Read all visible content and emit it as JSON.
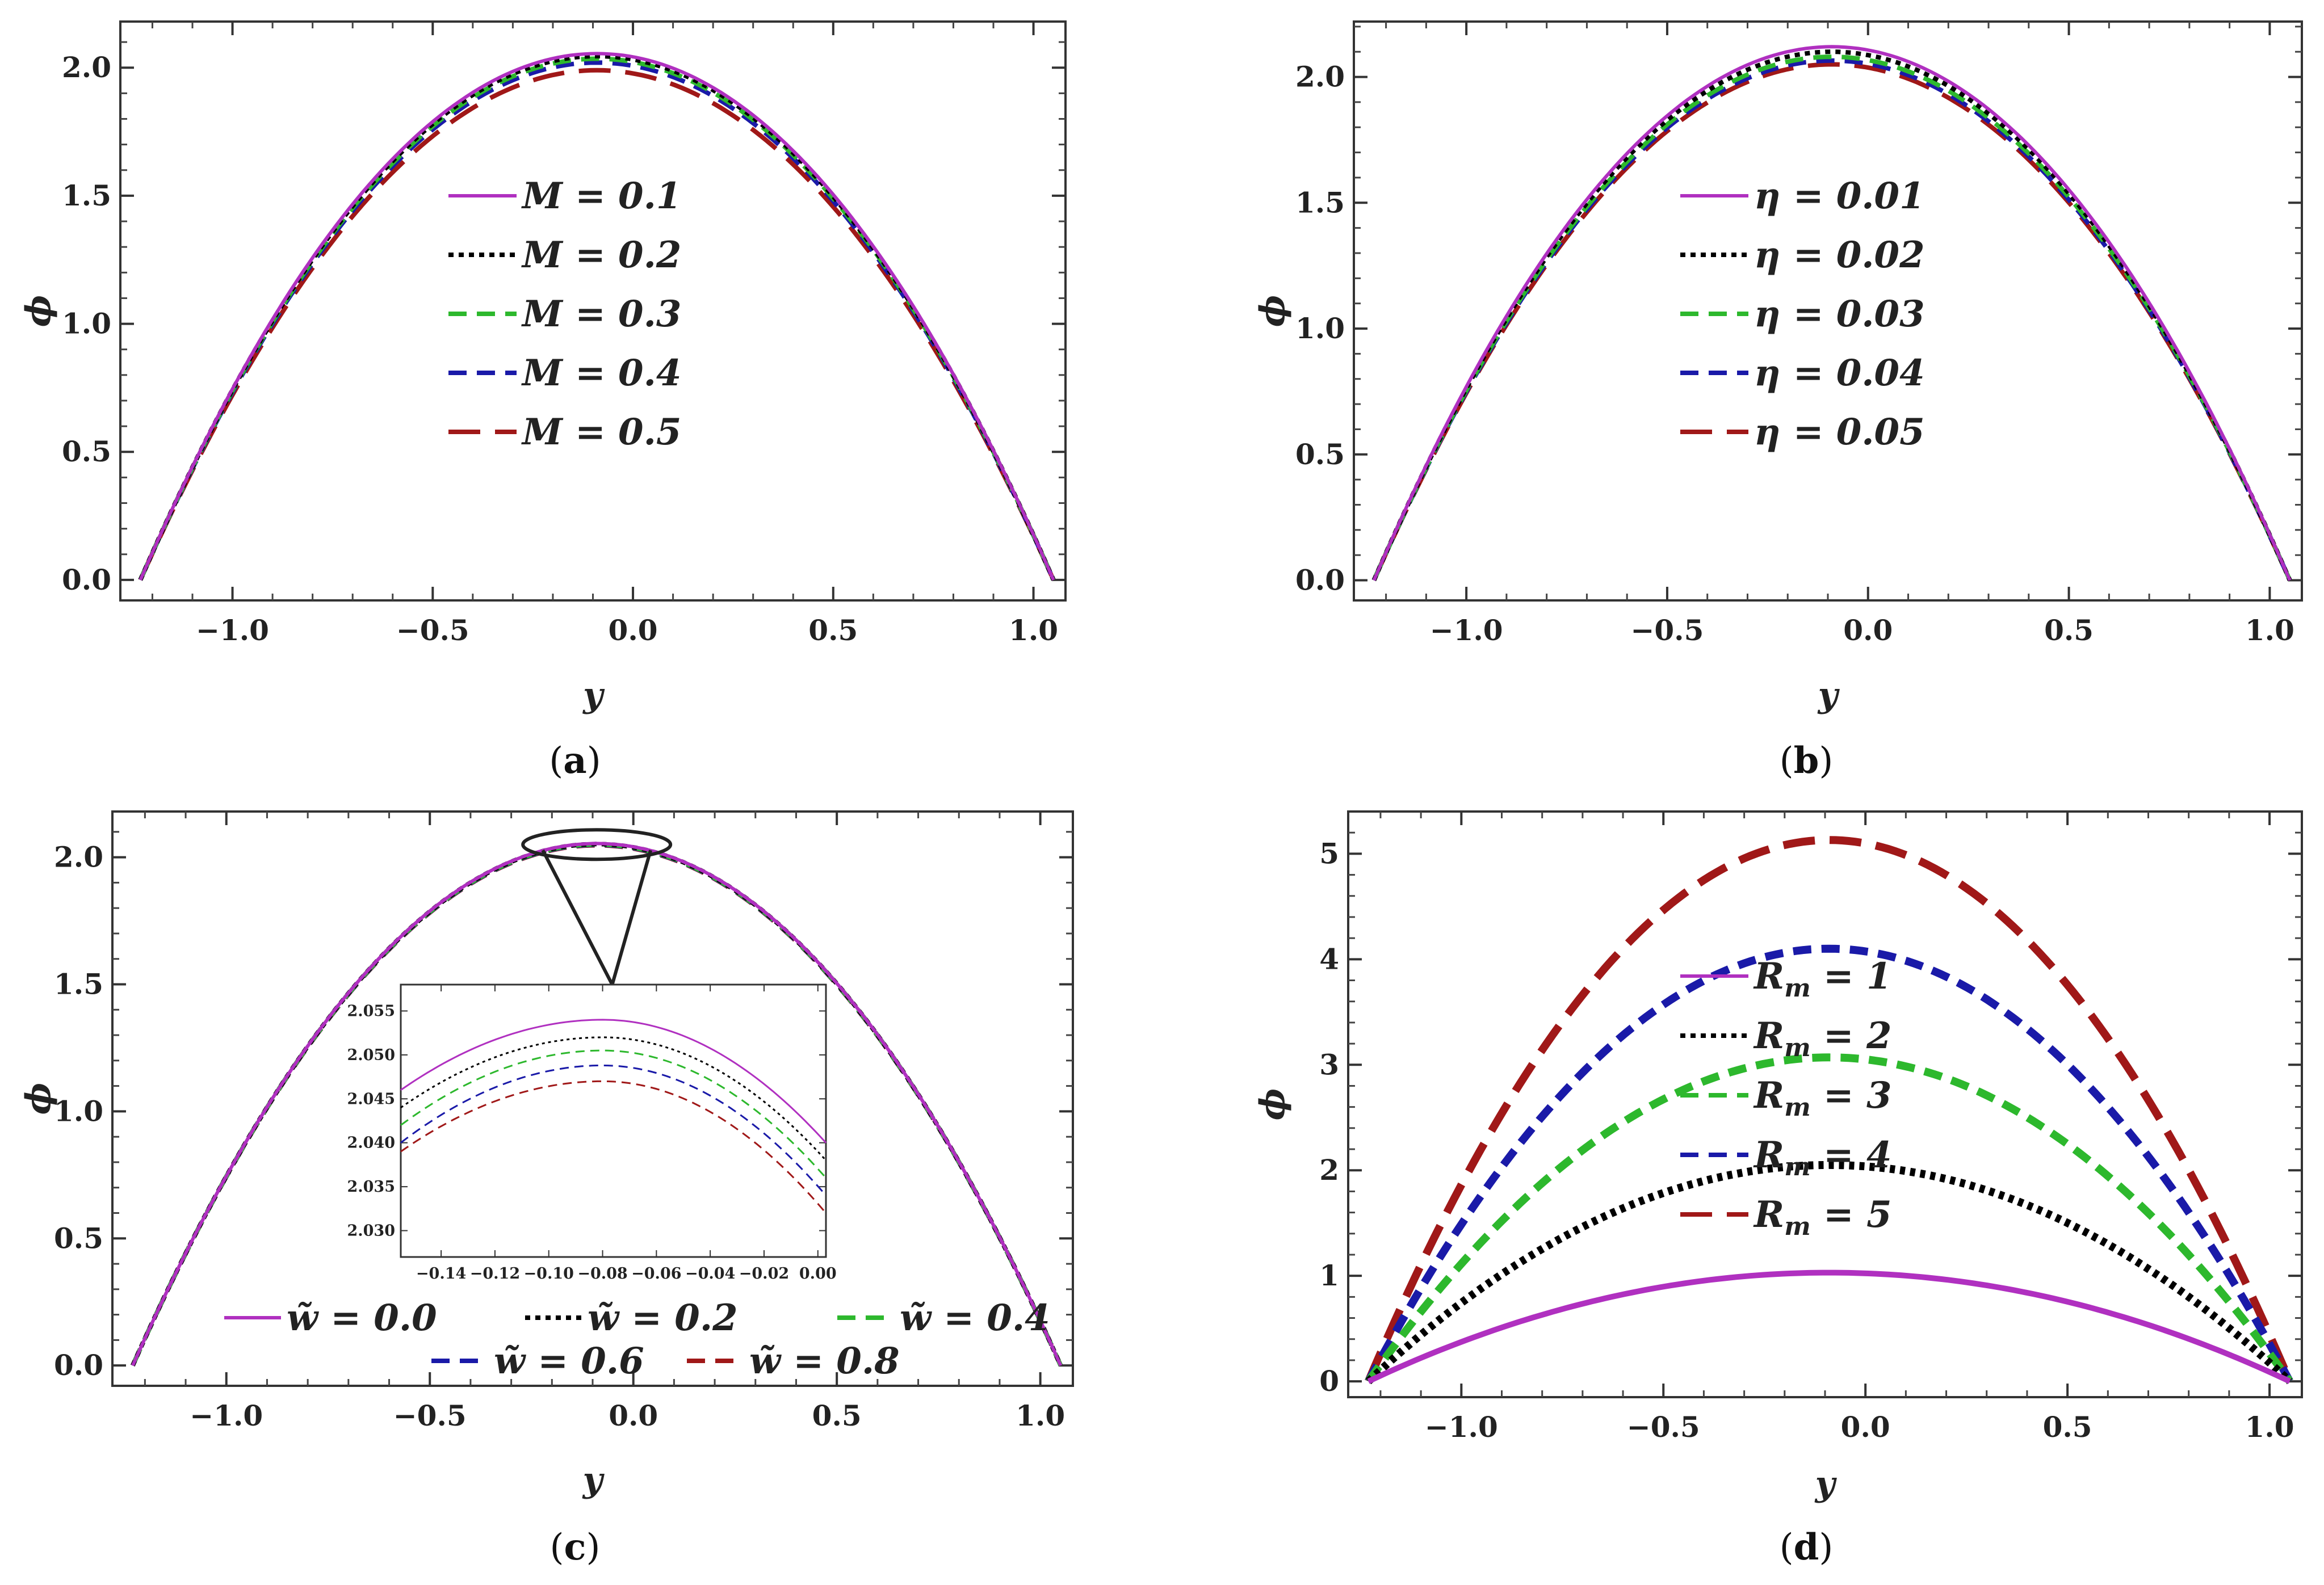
{
  "chart_data": [
    {
      "id": "a",
      "type": "line",
      "panel_label": "a",
      "xlabel": "y",
      "ylabel": "ϕ",
      "xlim": [
        -1.28,
        1.08
      ],
      "ylim": [
        -0.08,
        2.18
      ],
      "xticks": [
        "−1.0",
        "−0.5",
        "0.0",
        "0.5",
        "1.0"
      ],
      "xtick_values": [
        -1.0,
        -0.5,
        0.0,
        0.5,
        1.0
      ],
      "yticks": [
        "0.0",
        "0.5",
        "1.0",
        "1.5",
        "2.0"
      ],
      "ytick_values": [
        0.0,
        0.5,
        1.0,
        1.5,
        2.0
      ],
      "curve_domain": [
        -1.23,
        1.05
      ],
      "legend_position": "center",
      "legend_param": "M",
      "series": [
        {
          "name": "M = 0.1",
          "param": "M",
          "value": "0.1",
          "peak": 2.055,
          "color": "#b030c0",
          "dash": "solid"
        },
        {
          "name": "M = 0.2",
          "param": "M",
          "value": "0.2",
          "peak": 2.045,
          "color": "#000000",
          "dash": "dotted"
        },
        {
          "name": "M = 0.3",
          "param": "M",
          "value": "0.3",
          "peak": 2.035,
          "color": "#2db82d",
          "dash": "dashed"
        },
        {
          "name": "M = 0.4",
          "param": "M",
          "value": "0.4",
          "peak": 2.02,
          "color": "#1a1aa8",
          "dash": "dashed"
        },
        {
          "name": "M = 0.5",
          "param": "M",
          "value": "0.5",
          "peak": 1.99,
          "color": "#a01818",
          "dash": "longdash"
        }
      ]
    },
    {
      "id": "b",
      "type": "line",
      "panel_label": "b",
      "xlabel": "y",
      "ylabel": "ϕ",
      "xlim": [
        -1.28,
        1.08
      ],
      "ylim": [
        -0.08,
        2.22
      ],
      "xticks": [
        "−1.0",
        "−0.5",
        "0.0",
        "0.5",
        "1.0"
      ],
      "xtick_values": [
        -1.0,
        -0.5,
        0.0,
        0.5,
        1.0
      ],
      "yticks": [
        "0.0",
        "0.5",
        "1.0",
        "1.5",
        "2.0"
      ],
      "ytick_values": [
        0.0,
        0.5,
        1.0,
        1.5,
        2.0
      ],
      "curve_domain": [
        -1.23,
        1.05
      ],
      "legend_position": "center",
      "legend_param": "η",
      "series": [
        {
          "name": "η = 0.01",
          "param": "η",
          "value": "0.01",
          "peak": 2.12,
          "color": "#b030c0",
          "dash": "solid"
        },
        {
          "name": "η = 0.02",
          "param": "η",
          "value": "0.02",
          "peak": 2.1,
          "color": "#000000",
          "dash": "dotted"
        },
        {
          "name": "η = 0.03",
          "param": "η",
          "value": "0.03",
          "peak": 2.08,
          "color": "#2db82d",
          "dash": "dashed"
        },
        {
          "name": "η = 0.04",
          "param": "η",
          "value": "0.04",
          "peak": 2.065,
          "color": "#1a1aa8",
          "dash": "dashed"
        },
        {
          "name": "η = 0.05",
          "param": "η",
          "value": "0.05",
          "peak": 2.05,
          "color": "#a01818",
          "dash": "longdash"
        }
      ]
    },
    {
      "id": "c",
      "type": "line",
      "panel_label": "c",
      "xlabel": "y",
      "ylabel": "ϕ",
      "xlim": [
        -1.28,
        1.08
      ],
      "ylim": [
        -0.08,
        2.18
      ],
      "xticks": [
        "−1.0",
        "−0.5",
        "0.0",
        "0.5",
        "1.0"
      ],
      "xtick_values": [
        -1.0,
        -0.5,
        0.0,
        0.5,
        1.0
      ],
      "yticks": [
        "0.0",
        "0.5",
        "1.0",
        "1.5",
        "2.0"
      ],
      "ytick_values": [
        0.0,
        0.5,
        1.0,
        1.5,
        2.0
      ],
      "curve_domain": [
        -1.23,
        1.05
      ],
      "legend_position": "bottom",
      "legend_param": "w̃",
      "series": [
        {
          "name": "w̃ = 0.0",
          "param": "w̃",
          "value": "0.0",
          "peak": 2.054,
          "color": "#b030c0",
          "dash": "solid"
        },
        {
          "name": "w̃ = 0.2",
          "param": "w̃",
          "value": "0.2",
          "peak": 2.052,
          "color": "#000000",
          "dash": "dotted"
        },
        {
          "name": "w̃ = 0.4",
          "param": "w̃",
          "value": "0.4",
          "peak": 2.0505,
          "color": "#2db82d",
          "dash": "dashed"
        },
        {
          "name": "w̃ = 0.6",
          "param": "w̃",
          "value": "0.6",
          "peak": 2.0488,
          "color": "#1a1aa8",
          "dash": "dashed"
        },
        {
          "name": "w̃ = 0.8",
          "param": "w̃",
          "value": "0.8",
          "peak": 2.047,
          "color": "#a01818",
          "dash": "dashed"
        }
      ],
      "inset": {
        "type": "line",
        "xlim": [
          -0.155,
          0.003
        ],
        "ylim": [
          2.027,
          2.058
        ],
        "xticks": [
          "−0.14",
          "−0.12",
          "−0.10",
          "−0.08",
          "−0.06",
          "−0.04",
          "−0.02",
          "0.00"
        ],
        "xtick_values": [
          -0.14,
          -0.12,
          -0.1,
          -0.08,
          -0.06,
          -0.04,
          -0.02,
          0.0
        ],
        "yticks": [
          "2.030",
          "2.035",
          "2.040",
          "2.045",
          "2.050",
          "2.055"
        ],
        "ytick_values": [
          2.03,
          2.035,
          2.04,
          2.045,
          2.05,
          2.055
        ],
        "series_right_values": [
          2.04,
          2.038,
          2.036,
          2.034,
          2.032
        ],
        "series_left_values": [
          2.046,
          2.044,
          2.042,
          2.04,
          2.039
        ],
        "series_peak_x": -0.08
      }
    },
    {
      "id": "d",
      "type": "line",
      "panel_label": "d",
      "xlabel": "y",
      "ylabel": "ϕ",
      "xlim": [
        -1.28,
        1.08
      ],
      "ylim": [
        -0.15,
        5.4
      ],
      "xticks": [
        "−1.0",
        "−0.5",
        "0.0",
        "0.5",
        "1.0"
      ],
      "xtick_values": [
        -1.0,
        -0.5,
        0.0,
        0.5,
        1.0
      ],
      "yticks": [
        "0",
        "1",
        "2",
        "3",
        "4",
        "5"
      ],
      "ytick_values": [
        0,
        1,
        2,
        3,
        4,
        5
      ],
      "curve_domain": [
        -1.23,
        1.05
      ],
      "legend_position": "center",
      "legend_param": "R",
      "legend_subscript": "m",
      "series": [
        {
          "name": "Rm = 1",
          "param": "R",
          "sub": "m",
          "value": "1",
          "peak": 1.03,
          "color": "#b030c0",
          "dash": "solid"
        },
        {
          "name": "Rm = 2",
          "param": "R",
          "sub": "m",
          "value": "2",
          "peak": 2.05,
          "color": "#000000",
          "dash": "dotted"
        },
        {
          "name": "Rm = 3",
          "param": "R",
          "sub": "m",
          "value": "3",
          "peak": 3.07,
          "color": "#2db82d",
          "dash": "dashed"
        },
        {
          "name": "Rm = 4",
          "param": "R",
          "sub": "m",
          "value": "4",
          "peak": 4.1,
          "color": "#1a1aa8",
          "dash": "dashed"
        },
        {
          "name": "Rm = 5",
          "param": "R",
          "sub": "m",
          "value": "5",
          "peak": 5.13,
          "color": "#a01818",
          "dash": "longdash"
        }
      ]
    }
  ]
}
